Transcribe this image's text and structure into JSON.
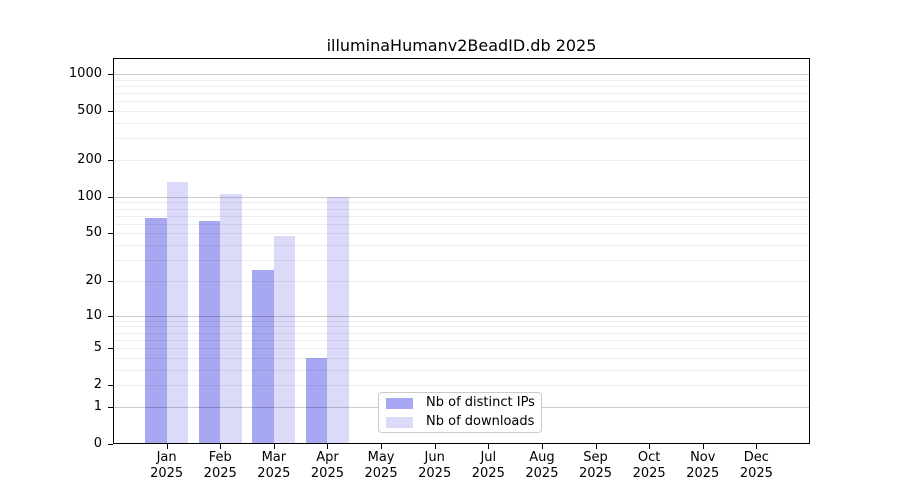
{
  "page": {
    "background": "#ffffff"
  },
  "chart_data": {
    "type": "bar",
    "title": "illuminaHumanv2BeadID.db 2025",
    "year_label": "2025",
    "categories": [
      "Jan",
      "Feb",
      "Mar",
      "Apr",
      "May",
      "Jun",
      "Jul",
      "Aug",
      "Sep",
      "Oct",
      "Nov",
      "Dec"
    ],
    "series": [
      {
        "name": "Nb of distinct IPs",
        "slug": "distinct-ips",
        "color": "#a7a7f2",
        "values": [
          67,
          64,
          25,
          4,
          0,
          0,
          0,
          0,
          0,
          0,
          0,
          0
        ]
      },
      {
        "name": "Nb of downloads",
        "slug": "downloads",
        "color": "#dbdbf9",
        "values": [
          132,
          106,
          48,
          100,
          0,
          0,
          0,
          0,
          0,
          0,
          0,
          0
        ]
      }
    ],
    "xlabel": "",
    "ylabel": "",
    "y_scale": "log10(1+x)",
    "y_ticks": [
      0,
      1,
      2,
      5,
      10,
      20,
      50,
      100,
      200,
      500,
      1000
    ],
    "ylim": [
      0,
      1350
    ],
    "grid": "horizontal major and minor gridlines, drawn over bars",
    "legend_position": "inside plot, lower middle"
  },
  "legend": {
    "items": [
      {
        "label": "Nb of distinct IPs",
        "color": "#a7a7f2"
      },
      {
        "label": "Nb of downloads",
        "color": "#dbdbf9"
      }
    ]
  }
}
